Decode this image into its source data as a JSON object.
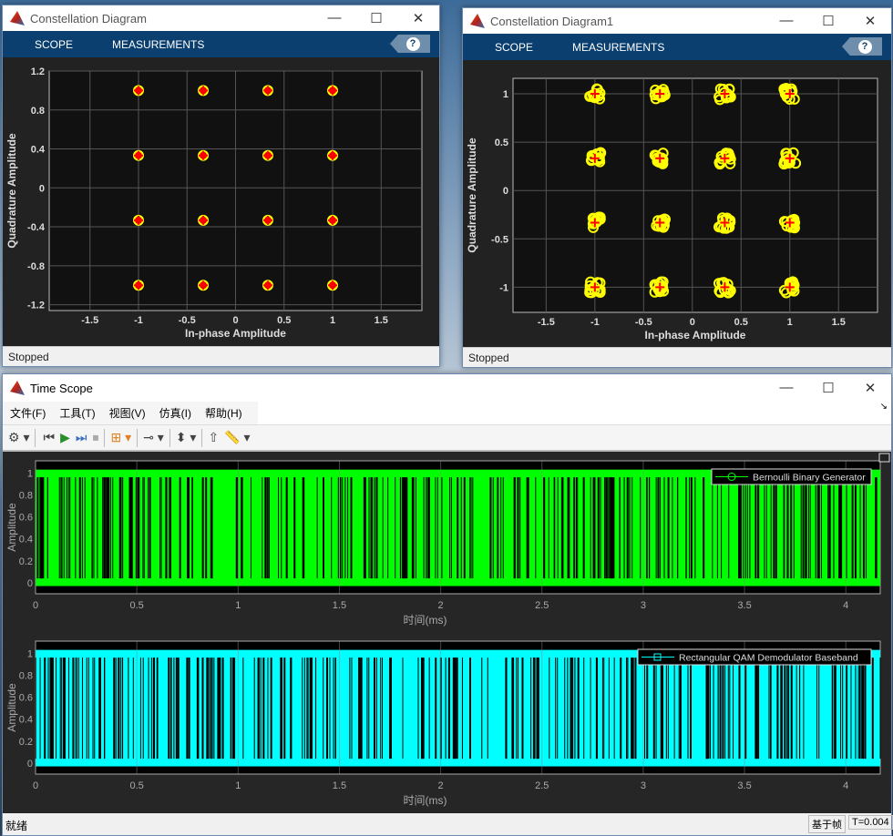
{
  "constellation1": {
    "title": "Constellation Diagram",
    "menu": [
      "SCOPE",
      "MEASUREMENTS"
    ],
    "help": "?",
    "status": "Stopped",
    "xlabel": "In-phase Amplitude",
    "ylabel": "Quadrature Amplitude",
    "xticks": [
      "-1.5",
      "-1",
      "-0.5",
      "0",
      "0.5",
      "1",
      "1.5"
    ],
    "yticks": [
      "1.2",
      "0.8",
      "0.4",
      "0",
      "-0.4",
      "-0.8",
      "-1.2"
    ]
  },
  "constellation2": {
    "title": "Constellation Diagram1",
    "menu": [
      "SCOPE",
      "MEASUREMENTS"
    ],
    "help": "?",
    "status": "Stopped",
    "xlabel": "In-phase Amplitude",
    "ylabel": "Quadrature Amplitude",
    "xticks": [
      "-1.5",
      "-1",
      "-0.5",
      "0",
      "0.5",
      "1",
      "1.5"
    ],
    "yticks": [
      "1",
      "0.5",
      "0",
      "-0.5",
      "-1"
    ]
  },
  "timescope": {
    "title": "Time Scope",
    "menu": [
      "文件(F)",
      "工具(T)",
      "视图(V)",
      "仿真(I)",
      "帮助(H)"
    ],
    "status_left": "就绪",
    "status_mode": "基于帧",
    "status_time": "T=0.004",
    "plots": [
      {
        "legend": "Bernoulli Binary Generator",
        "ylabel": "Amplitude",
        "xlabel": "时间(ms)",
        "color": "#00ff00"
      },
      {
        "legend": "Rectangular QAM Demodulator Baseband",
        "ylabel": "Amplitude",
        "xlabel": "时间(ms)",
        "color": "#00ffff"
      }
    ],
    "xticks": [
      "0",
      "0.5",
      "1",
      "1.5",
      "2",
      "2.5",
      "3",
      "3.5",
      "4"
    ],
    "yticks": [
      "1",
      "0.8",
      "0.6",
      "0.4",
      "0.2",
      "0"
    ]
  },
  "chart_data": [
    {
      "type": "scatter",
      "title": "Constellation Diagram",
      "xlabel": "In-phase Amplitude",
      "ylabel": "Quadrature Amplitude",
      "xlim": [
        -1.92,
        1.92
      ],
      "ylim": [
        -1.26,
        1.2
      ],
      "grid": true,
      "reference_points": [
        [
          -1,
          1
        ],
        [
          -0.333,
          1
        ],
        [
          0.333,
          1
        ],
        [
          1,
          1
        ],
        [
          -1,
          0.333
        ],
        [
          -0.333,
          0.333
        ],
        [
          0.333,
          0.333
        ],
        [
          1,
          0.333
        ],
        [
          -1,
          -0.333
        ],
        [
          -0.333,
          -0.333
        ],
        [
          0.333,
          -0.333
        ],
        [
          1,
          -0.333
        ],
        [
          -1,
          -1
        ],
        [
          -0.333,
          -1
        ],
        [
          0.333,
          -1
        ],
        [
          1,
          -1
        ]
      ],
      "received_spread": 0.0,
      "colors": {
        "received": "#ffff00",
        "reference": "#ff0000"
      }
    },
    {
      "type": "scatter",
      "title": "Constellation Diagram1",
      "xlabel": "In-phase Amplitude",
      "ylabel": "Quadrature Amplitude",
      "xlim": [
        -1.84,
        1.9
      ],
      "ylim": [
        -1.26,
        1.16
      ],
      "grid": true,
      "reference_points": [
        [
          -1,
          1
        ],
        [
          -0.333,
          1
        ],
        [
          0.333,
          1
        ],
        [
          1,
          1
        ],
        [
          -1,
          0.333
        ],
        [
          -0.333,
          0.333
        ],
        [
          0.333,
          0.333
        ],
        [
          1,
          0.333
        ],
        [
          -1,
          -0.333
        ],
        [
          -0.333,
          -0.333
        ],
        [
          0.333,
          -0.333
        ],
        [
          1,
          -0.333
        ],
        [
          -1,
          -1
        ],
        [
          -0.333,
          -1
        ],
        [
          0.333,
          -1
        ],
        [
          1,
          -1
        ]
      ],
      "received_spread": 0.06,
      "colors": {
        "received": "#ffff00",
        "reference": "#ff0000"
      }
    },
    {
      "type": "line",
      "series": [
        {
          "name": "Bernoulli Binary Generator",
          "values": "random binary 0/1"
        }
      ],
      "xlabel": "时间(ms)",
      "ylabel": "Amplitude",
      "xlim": [
        0,
        4.17
      ],
      "ylim": [
        -0.1,
        1.11
      ],
      "grid": true,
      "legend": "top-right"
    },
    {
      "type": "line",
      "series": [
        {
          "name": "Rectangular QAM Demodulator Baseband",
          "values": "random binary 0/1"
        }
      ],
      "xlabel": "时间(ms)",
      "ylabel": "Amplitude",
      "xlim": [
        0,
        4.17
      ],
      "ylim": [
        -0.1,
        1.11
      ],
      "grid": true,
      "legend": "top-right"
    }
  ]
}
